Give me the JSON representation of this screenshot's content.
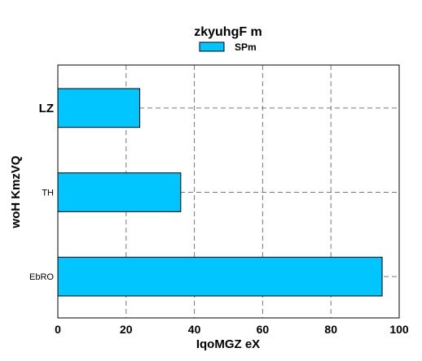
{
  "chart_data": {
    "type": "bar",
    "orientation": "horizontal",
    "title": "zkyuhgF m",
    "xlabel": "IqoMGZ eX",
    "ylabel": "woH KmzVQ",
    "categories": [
      "LZ",
      "TH",
      "EbRO"
    ],
    "series": [
      {
        "name": "SPm",
        "values": [
          24,
          36,
          95
        ],
        "color": "#00c5ff"
      }
    ],
    "xlim": [
      0,
      100
    ],
    "xticks": [
      0,
      20,
      40,
      60,
      80,
      100
    ],
    "grid": true,
    "legend": "top-center"
  }
}
